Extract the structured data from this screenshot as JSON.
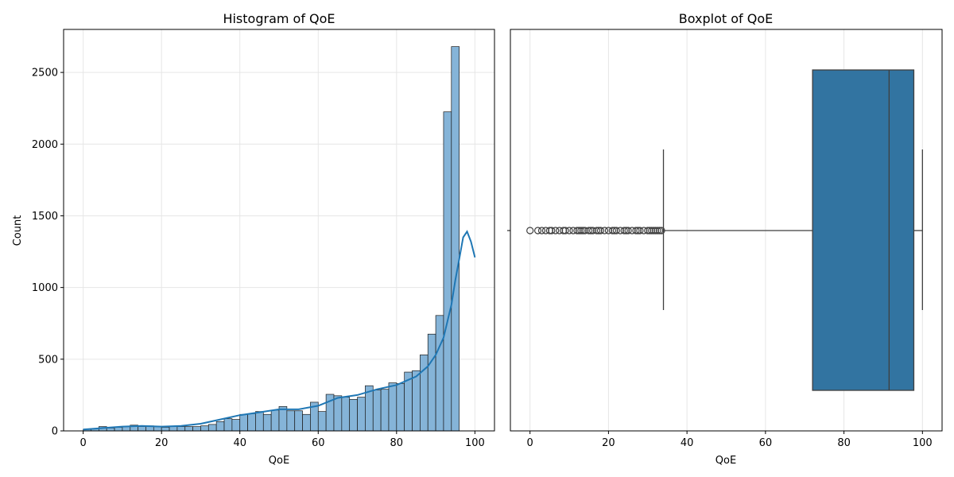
{
  "chart_data": [
    {
      "type": "bar",
      "title": "Histogram of QoE",
      "xlabel": "QoE",
      "ylabel": "Count",
      "xlim": [
        -5,
        105
      ],
      "ylim": [
        0,
        2800
      ],
      "xticks": [
        0,
        20,
        40,
        60,
        80,
        100
      ],
      "yticks": [
        0,
        500,
        1000,
        1500,
        2000,
        2500
      ],
      "grid": true,
      "bin_width": 2,
      "bins_start": [
        0,
        2,
        4,
        6,
        8,
        10,
        12,
        14,
        16,
        18,
        20,
        22,
        24,
        26,
        28,
        30,
        32,
        34,
        36,
        38,
        40,
        42,
        44,
        46,
        48,
        50,
        52,
        54,
        56,
        58,
        60,
        62,
        64,
        66,
        68,
        70,
        72,
        74,
        76,
        78,
        80,
        82,
        84,
        86,
        88,
        90,
        92,
        94,
        96,
        98
      ],
      "counts": [
        10,
        15,
        30,
        20,
        25,
        30,
        40,
        30,
        35,
        30,
        25,
        30,
        30,
        30,
        30,
        35,
        45,
        65,
        85,
        80,
        115,
        120,
        135,
        115,
        145,
        170,
        140,
        140,
        115,
        200,
        135,
        255,
        245,
        235,
        220,
        235,
        315,
        285,
        290,
        335,
        330,
        410,
        420,
        530,
        675,
        805,
        2225,
        2680,
        0,
        0
      ],
      "kde": {
        "x": [
          0,
          5,
          10,
          15,
          20,
          25,
          30,
          35,
          40,
          45,
          50,
          55,
          60,
          65,
          70,
          75,
          80,
          85,
          88,
          90,
          92,
          94,
          95,
          96,
          97,
          98,
          99,
          100
        ],
        "y": [
          10,
          20,
          30,
          35,
          30,
          35,
          50,
          80,
          110,
          130,
          150,
          150,
          175,
          230,
          250,
          290,
          320,
          380,
          450,
          530,
          650,
          880,
          1050,
          1200,
          1350,
          1390,
          1320,
          1210
        ]
      }
    },
    {
      "type": "box",
      "title": "Boxplot of QoE",
      "xlabel": "QoE",
      "xlim": [
        -5,
        105
      ],
      "xticks": [
        0,
        20,
        40,
        60,
        80,
        100
      ],
      "grid": true,
      "box": {
        "whisker_low": 34,
        "q1": 72,
        "median": 91.5,
        "q3": 97.8,
        "whisker_high": 100
      },
      "outliers": [
        0,
        2,
        3,
        4,
        5,
        5.5,
        6.5,
        7.5,
        8.5,
        9,
        10,
        11,
        12,
        12.5,
        13,
        13.5,
        14,
        15,
        15.5,
        16,
        17,
        17.5,
        18,
        19,
        20,
        21,
        21.5,
        22,
        23,
        24,
        24.5,
        25,
        26,
        27,
        27.5,
        28,
        29,
        30,
        30.5,
        31,
        31.5,
        32,
        32.5,
        33,
        33.5
      ],
      "colors": {
        "box": "#3274a1",
        "line": "#3f3f3f"
      }
    }
  ],
  "colors": {
    "bar": "#85b4d8",
    "kde": "#1f77b4",
    "grid": "#e6e6e6"
  }
}
